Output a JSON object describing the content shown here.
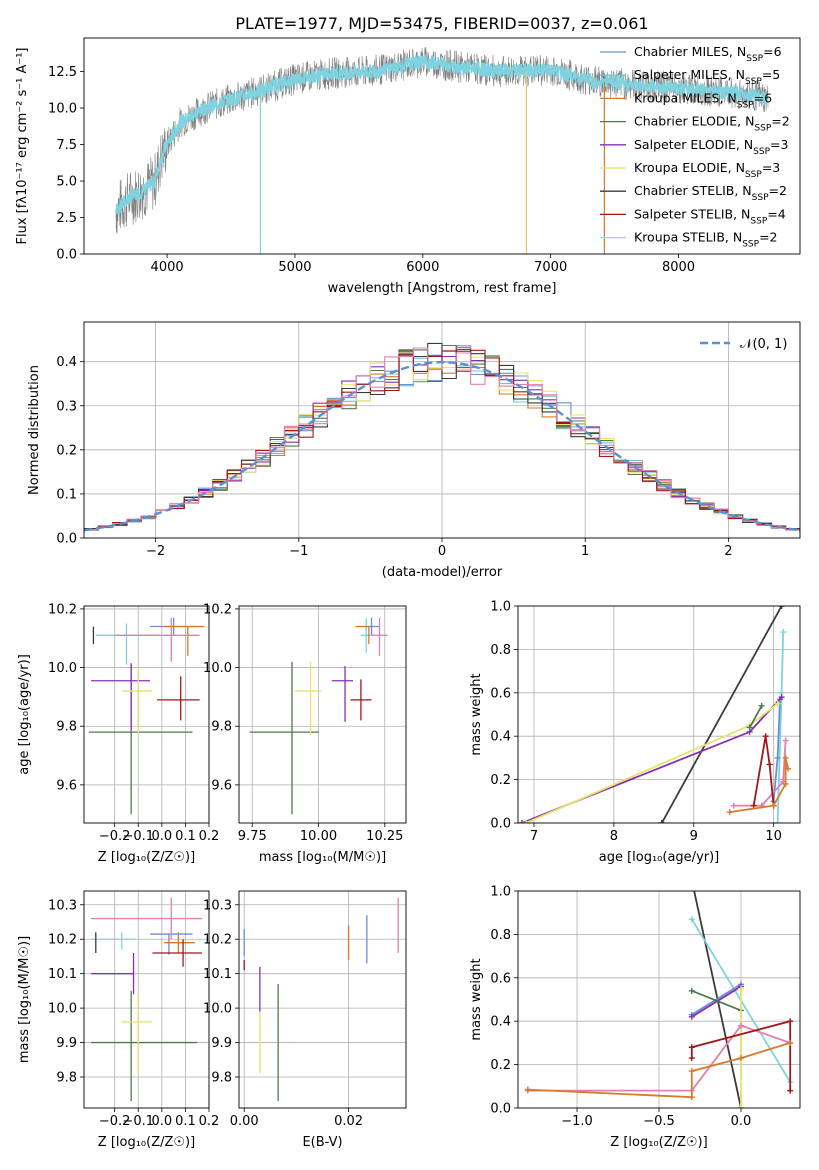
{
  "page_title": "PLATE=1977, MJD=53475, FIBERID=0037, z=0.061",
  "chart_data": [
    {
      "id": "spectrum",
      "type": "line",
      "title": "PLATE=1977, MJD=53475, FIBERID=0037, z=0.061",
      "xlabel": "wavelength [Angstrom, rest frame]",
      "ylabel": "Flux [fλ10⁻¹⁷ erg cm⁻² s⁻¹ A⁻¹]",
      "xlim": [
        3350,
        8950
      ],
      "ylim": [
        0,
        14.8
      ],
      "xticks": [
        4000,
        5000,
        6000,
        7000,
        8000
      ],
      "yticks": [
        0.0,
        2.5,
        5.0,
        7.5,
        10.0,
        12.5
      ],
      "legend_position": "top-right",
      "legend": [
        {
          "label": "Chabrier MILES, N",
          "sub": "SSP",
          "tail": "=6",
          "color": "#6a8fd8"
        },
        {
          "label": "Salpeter MILES, N",
          "sub": "SSP",
          "tail": "=5",
          "color": "#6cc4d8"
        },
        {
          "label": "Kroupa MILES, N",
          "sub": "SSP",
          "tail": "=6",
          "color": "#d87a2a"
        },
        {
          "label": "Chabrier ELODIE, N",
          "sub": "SSP",
          "tail": "=2",
          "color": "#4e7a4e"
        },
        {
          "label": "Salpeter ELODIE, N",
          "sub": "SSP",
          "tail": "=3",
          "color": "#8a2fb0"
        },
        {
          "label": "Kroupa ELODIE, N",
          "sub": "SSP",
          "tail": "=3",
          "color": "#e6e26a"
        },
        {
          "label": "Chabrier STELIB, N",
          "sub": "SSP",
          "tail": "=2",
          "color": "#3a3a3a"
        },
        {
          "label": "Salpeter STELIB, N",
          "sub": "SSP",
          "tail": "=4",
          "color": "#a01818"
        },
        {
          "label": "Kroupa STELIB, N",
          "sub": "SSP",
          "tail": "=2",
          "color": "#8fd8f0"
        }
      ],
      "continuum": {
        "x": [
          3600,
          3700,
          3800,
          3900,
          3950,
          4000,
          4100,
          4200,
          4300,
          4500,
          4800,
          5000,
          5300,
          5600,
          6000,
          6300,
          6600,
          7000,
          7300,
          7600,
          8000,
          8300,
          8600,
          8700
        ],
        "y": [
          3.0,
          3.8,
          4.3,
          4.9,
          6.5,
          7.5,
          9.0,
          9.5,
          10.0,
          10.6,
          11.4,
          12.0,
          12.4,
          12.5,
          13.2,
          12.8,
          12.5,
          12.6,
          11.9,
          11.6,
          11.4,
          11.1,
          10.9,
          10.5
        ]
      },
      "data_color": "#808080",
      "model_color": "#7fd3e0"
    },
    {
      "id": "residuals",
      "type": "line",
      "xlabel": "(data-model)/error",
      "ylabel": "Normed distribution",
      "xlim": [
        -2.5,
        2.5
      ],
      "ylim": [
        0,
        0.49
      ],
      "xticks": [
        -2,
        -1,
        0,
        1,
        2
      ],
      "yticks": [
        0.0,
        0.1,
        0.2,
        0.3,
        0.4
      ],
      "grid": true,
      "legend_position": "top-right",
      "legend_label": "𝒩(0, 1)",
      "bin_width": 0.1,
      "series_colors": [
        "#6a8fd8",
        "#6cc4d8",
        "#d87a2a",
        "#4e7a4e",
        "#8a2fb0",
        "#e6e26a",
        "#3a3a3a",
        "#a01818",
        "#e080b0"
      ],
      "gaussian_color": "#5b8fd6"
    },
    {
      "id": "age-vs-Z",
      "type": "scatter",
      "xlabel": "Z [log₁₀(Z/Z☉)]",
      "ylabel": "age  [log₁₀(age/yr)]",
      "xlim": [
        -0.33,
        0.2
      ],
      "ylim": [
        9.47,
        10.21
      ],
      "xticks": [
        -0.2,
        -0.1,
        0.0,
        0.1,
        0.2
      ],
      "yticks": [
        9.6,
        9.8,
        10.0,
        10.2
      ],
      "grid": true,
      "points": [
        {
          "x": 0.05,
          "y": 10.14,
          "xerr": [
            0.1,
            0.1
          ],
          "yerr": [
            0.03,
            0.03
          ],
          "color": "#6a8fd8"
        },
        {
          "x": -0.15,
          "y": 10.11,
          "xerr": [
            0.13,
            0.17
          ],
          "yerr": [
            0.1,
            0.04
          ],
          "color": "#7fd3e0"
        },
        {
          "x": 0.11,
          "y": 10.14,
          "xerr": [
            0.1,
            0.07
          ],
          "yerr": [
            0.1,
            0.0
          ],
          "color": "#d87a2a"
        },
        {
          "x": 0.04,
          "y": 10.11,
          "xerr": [
            0.24,
            0.12
          ],
          "yerr": [
            0.09,
            0.06
          ],
          "color": "#e080b0"
        },
        {
          "x": -0.13,
          "y": 9.78,
          "xerr": [
            0.18,
            0.26
          ],
          "yerr": [
            0.28,
            0.23
          ],
          "color": "#4e7a4e"
        },
        {
          "x": -0.13,
          "y": 9.955,
          "xerr": [
            0.17,
            0.08
          ],
          "yerr": [
            0.17,
            0.06
          ],
          "color": "#8a2fb0"
        },
        {
          "x": -0.1,
          "y": 9.92,
          "xerr": [
            0.07,
            0.06
          ],
          "yerr": [
            0.15,
            0.08
          ],
          "color": "#e6e26a"
        },
        {
          "x": -0.29,
          "y": 10.11,
          "xerr": [
            0.0,
            0.0
          ],
          "yerr": [
            0.03,
            0.03
          ],
          "color": "#3a3a3a"
        },
        {
          "x": 0.08,
          "y": 9.89,
          "xerr": [
            0.1,
            0.08
          ],
          "yerr": [
            0.07,
            0.08
          ],
          "color": "#a01818"
        }
      ]
    },
    {
      "id": "age-vs-mass",
      "type": "scatter",
      "xlabel": "mass [log₁₀(M/M☉)]",
      "xlim": [
        9.7,
        10.33
      ],
      "ylim": [
        9.47,
        10.21
      ],
      "xticks": [
        9.75,
        10.0,
        10.25
      ],
      "xticklabels": [
        "9.75",
        "10.00",
        "10.25"
      ],
      "yticks": [
        9.6,
        9.8,
        10.0,
        10.2
      ],
      "grid": true,
      "points": [
        {
          "x": 10.2,
          "y": 10.14,
          "xerr": [
            0.03,
            0.03
          ],
          "yerr": [
            0.03,
            0.03
          ],
          "color": "#6a8fd8"
        },
        {
          "x": 10.18,
          "y": 10.11,
          "xerr": [
            0.02,
            0.03
          ],
          "yerr": [
            0.06,
            0.06
          ],
          "color": "#7fd3e0"
        },
        {
          "x": 10.19,
          "y": 10.14,
          "xerr": [
            0.05,
            0.0
          ],
          "yerr": [
            0.06,
            0.0
          ],
          "color": "#d87a2a"
        },
        {
          "x": 10.23,
          "y": 10.11,
          "xerr": [
            0.03,
            0.03
          ],
          "yerr": [
            0.07,
            0.06
          ],
          "color": "#e080b0"
        },
        {
          "x": 9.9,
          "y": 9.78,
          "xerr": [
            0.16,
            0.1
          ],
          "yerr": [
            0.28,
            0.24
          ],
          "color": "#4e7a4e"
        },
        {
          "x": 10.1,
          "y": 9.955,
          "xerr": [
            0.05,
            0.03
          ],
          "yerr": [
            0.14,
            0.05
          ],
          "color": "#8a2fb0"
        },
        {
          "x": 9.97,
          "y": 9.92,
          "xerr": [
            0.06,
            0.04
          ],
          "yerr": [
            0.15,
            0.1
          ],
          "color": "#e6e26a"
        },
        {
          "x": 10.16,
          "y": 9.89,
          "xerr": [
            0.04,
            0.04
          ],
          "yerr": [
            0.07,
            0.07
          ],
          "color": "#a01818"
        }
      ]
    },
    {
      "id": "weight-vs-age",
      "type": "line",
      "xlabel": "age  [log₁₀(age/yr)]",
      "ylabel": "mass weight",
      "xlim": [
        6.8,
        10.33
      ],
      "ylim": [
        0,
        1.0
      ],
      "xticks": [
        7,
        8,
        9,
        10
      ],
      "yticks": [
        0.0,
        0.2,
        0.4,
        0.6,
        0.8,
        1.0
      ],
      "grid": true,
      "series": [
        {
          "color": "#3a3a3a",
          "x": [
            8.6,
            10.1
          ],
          "y": [
            0.0,
            1.0
          ]
        },
        {
          "color": "#7fd3e0",
          "x": [
            10.05,
            10.1,
            10.12
          ],
          "y": [
            0.0,
            0.6,
            0.88
          ]
        },
        {
          "color": "#6a8fd8",
          "x": [
            10.0,
            10.05,
            10.08
          ],
          "y": [
            0.1,
            0.3,
            0.57
          ]
        },
        {
          "color": "#8a2fb0",
          "x": [
            6.85,
            9.7,
            10.1
          ],
          "y": [
            0.0,
            0.42,
            0.58
          ]
        },
        {
          "color": "#e6e26a",
          "x": [
            6.9,
            9.7,
            10.05
          ],
          "y": [
            0.0,
            0.45,
            0.55
          ]
        },
        {
          "color": "#4e7a4e",
          "x": [
            9.7,
            9.85
          ],
          "y": [
            0.44,
            0.54
          ]
        },
        {
          "color": "#e080b0",
          "x": [
            9.5,
            9.85,
            10.12,
            10.15,
            10.12
          ],
          "y": [
            0.08,
            0.08,
            0.19,
            0.38,
            0.2
          ]
        },
        {
          "color": "#a01818",
          "x": [
            9.75,
            9.9,
            9.95,
            10.0
          ],
          "y": [
            0.08,
            0.4,
            0.27,
            0.08
          ]
        },
        {
          "color": "#d87a2a",
          "x": [
            9.45,
            10.0,
            10.15,
            10.15,
            10.18
          ],
          "y": [
            0.05,
            0.08,
            0.18,
            0.3,
            0.25
          ]
        }
      ]
    },
    {
      "id": "mass-vs-Z",
      "type": "scatter",
      "xlabel": "Z [log₁₀(Z/Z☉)]",
      "ylabel": "mass [log₁₀(M/M☉)]",
      "xlim": [
        -0.33,
        0.2
      ],
      "ylim": [
        9.71,
        10.34
      ],
      "xticks": [
        -0.2,
        -0.1,
        0.0,
        0.1,
        0.2
      ],
      "yticks": [
        9.8,
        9.9,
        10.0,
        10.1,
        10.2,
        10.3
      ],
      "grid": true,
      "points": [
        {
          "x": 0.03,
          "y": 10.215,
          "xerr": [
            0.08,
            0.1
          ],
          "yerr": [
            0.06,
            0.0
          ],
          "color": "#6a8fd8"
        },
        {
          "x": -0.17,
          "y": 10.2,
          "xerr": [
            0.13,
            0.06
          ],
          "yerr": [
            0.03,
            0.02
          ],
          "color": "#7fd3e0"
        },
        {
          "x": 0.07,
          "y": 10.19,
          "xerr": [
            0.06,
            0.07
          ],
          "yerr": [
            0.03,
            0.03
          ],
          "color": "#d87a2a"
        },
        {
          "x": 0.04,
          "y": 10.26,
          "xerr": [
            0.34,
            0.13
          ],
          "yerr": [
            0.06,
            0.06
          ],
          "color": "#e080b0"
        },
        {
          "x": -0.13,
          "y": 9.9,
          "xerr": [
            0.17,
            0.28
          ],
          "yerr": [
            0.17,
            0.15
          ],
          "color": "#4e7a4e"
        },
        {
          "x": -0.12,
          "y": 10.1,
          "xerr": [
            0.18,
            0.0
          ],
          "yerr": [
            0.06,
            0.06
          ],
          "color": "#8a2fb0"
        },
        {
          "x": -0.1,
          "y": 9.96,
          "xerr": [
            0.07,
            0.06
          ],
          "yerr": [
            0.15,
            0.08
          ],
          "color": "#e6e26a"
        },
        {
          "x": -0.28,
          "y": 10.19,
          "xerr": [
            0.0,
            0.0
          ],
          "yerr": [
            0.03,
            0.03
          ],
          "color": "#3a3a3a"
        },
        {
          "x": 0.09,
          "y": 10.16,
          "xerr": [
            0.13,
            0.08
          ],
          "yerr": [
            0.04,
            0.04
          ],
          "color": "#a01818"
        }
      ]
    },
    {
      "id": "mass-vs-EBV",
      "type": "scatter",
      "xlabel": "E(B-V)",
      "xlim": [
        -0.001,
        0.031
      ],
      "ylim": [
        9.71,
        10.34
      ],
      "xticks": [
        0.0,
        0.02
      ],
      "xticklabels": [
        "0.00",
        "0.02"
      ],
      "yticks": [
        9.8,
        9.9,
        10.0,
        10.1,
        10.2,
        10.3
      ],
      "grid": true,
      "points": [
        {
          "x": 0.0,
          "y": 10.19,
          "yerr": [
            0.04,
            0.04
          ],
          "color": "#6a8fd8"
        },
        {
          "x": 0.0,
          "y": 10.14,
          "yerr": [
            0.03,
            0.0
          ],
          "color": "#a01818"
        },
        {
          "x": 0.003,
          "y": 10.06,
          "yerr": [
            0.07,
            0.06
          ],
          "color": "#8a2fb0"
        },
        {
          "x": 0.003,
          "y": 9.9,
          "yerr": [
            0.09,
            0.09
          ],
          "color": "#e6e26a"
        },
        {
          "x": 0.0065,
          "y": 9.9,
          "yerr": [
            0.17,
            0.17
          ],
          "color": "#4e7a4e"
        },
        {
          "x": 0.02,
          "y": 10.19,
          "yerr": [
            0.05,
            0.05
          ],
          "color": "#d87a2a"
        },
        {
          "x": 0.0235,
          "y": 10.2,
          "yerr": [
            0.07,
            0.07
          ],
          "color": "#6a8fd8"
        },
        {
          "x": 0.0295,
          "y": 10.24,
          "yerr": [
            0.08,
            0.08
          ],
          "color": "#e080b0"
        }
      ]
    },
    {
      "id": "weight-vs-Z",
      "type": "line",
      "xlabel": "Z [log₁₀(Z/Z☉)]",
      "ylabel": "mass weight",
      "xlim": [
        -1.36,
        0.36
      ],
      "ylim": [
        0,
        1.0
      ],
      "xticks": [
        -1.0,
        -0.5,
        0.0
      ],
      "xticklabels": [
        "−1.0",
        "−0.5",
        "0.0"
      ],
      "yticks": [
        0.0,
        0.2,
        0.4,
        0.6,
        0.8,
        1.0
      ],
      "grid": true,
      "series": [
        {
          "color": "#3a3a3a",
          "x": [
            -0.3,
            0.0
          ],
          "y": [
            1.05,
            0.0
          ]
        },
        {
          "color": "#7fd3e0",
          "x": [
            -0.3,
            0.3
          ],
          "y": [
            0.87,
            0.12
          ]
        },
        {
          "color": "#6a8fd8",
          "x": [
            -0.3,
            0.0
          ],
          "y": [
            0.43,
            0.57
          ]
        },
        {
          "color": "#8a2fb0",
          "x": [
            -0.3,
            0.0
          ],
          "y": [
            0.42,
            0.56
          ]
        },
        {
          "color": "#4e7a4e",
          "x": [
            -0.3,
            0.0
          ],
          "y": [
            0.54,
            0.45
          ]
        },
        {
          "color": "#e6e26a",
          "x": [
            0.0,
            0.0
          ],
          "y": [
            0.55,
            0.0
          ]
        },
        {
          "color": "#e080b0",
          "x": [
            -1.3,
            -0.3,
            0.0,
            0.3
          ],
          "y": [
            0.08,
            0.08,
            0.38,
            0.3
          ]
        },
        {
          "color": "#a01818",
          "x": [
            -0.3,
            -0.3,
            0.3,
            0.3
          ],
          "y": [
            0.23,
            0.28,
            0.4,
            0.08
          ]
        },
        {
          "color": "#d87a2a",
          "x": [
            -1.3,
            -0.3,
            -0.3,
            0.0,
            0.3
          ],
          "y": [
            0.085,
            0.05,
            0.17,
            0.23,
            0.3
          ]
        }
      ]
    }
  ]
}
